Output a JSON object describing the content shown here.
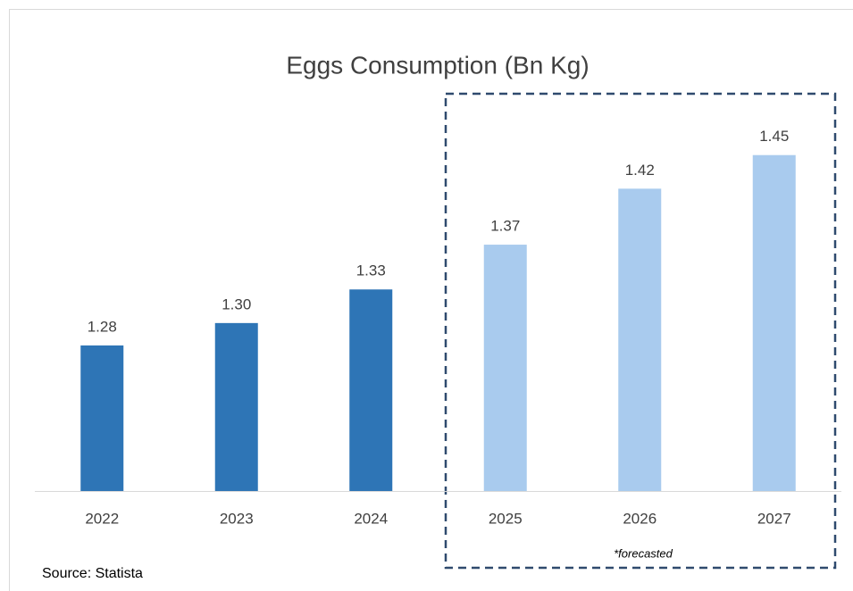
{
  "chart_data": {
    "type": "bar",
    "title": "Eggs Consumption (Bn Kg)",
    "categories": [
      "2022",
      "2023",
      "2024",
      "2025",
      "2026",
      "2027"
    ],
    "values": [
      1.28,
      1.3,
      1.33,
      1.37,
      1.42,
      1.45
    ],
    "value_labels": [
      "1.28",
      "1.30",
      "1.33",
      "1.37",
      "1.42",
      "1.45"
    ],
    "colors": [
      "#2e75b6",
      "#2e75b6",
      "#2e75b6",
      "#a9cbee",
      "#a9cbee",
      "#a9cbee"
    ],
    "ylim": [
      1.15,
      1.5
    ],
    "annotation": "*forecasted",
    "source": "Source: Statista"
  }
}
